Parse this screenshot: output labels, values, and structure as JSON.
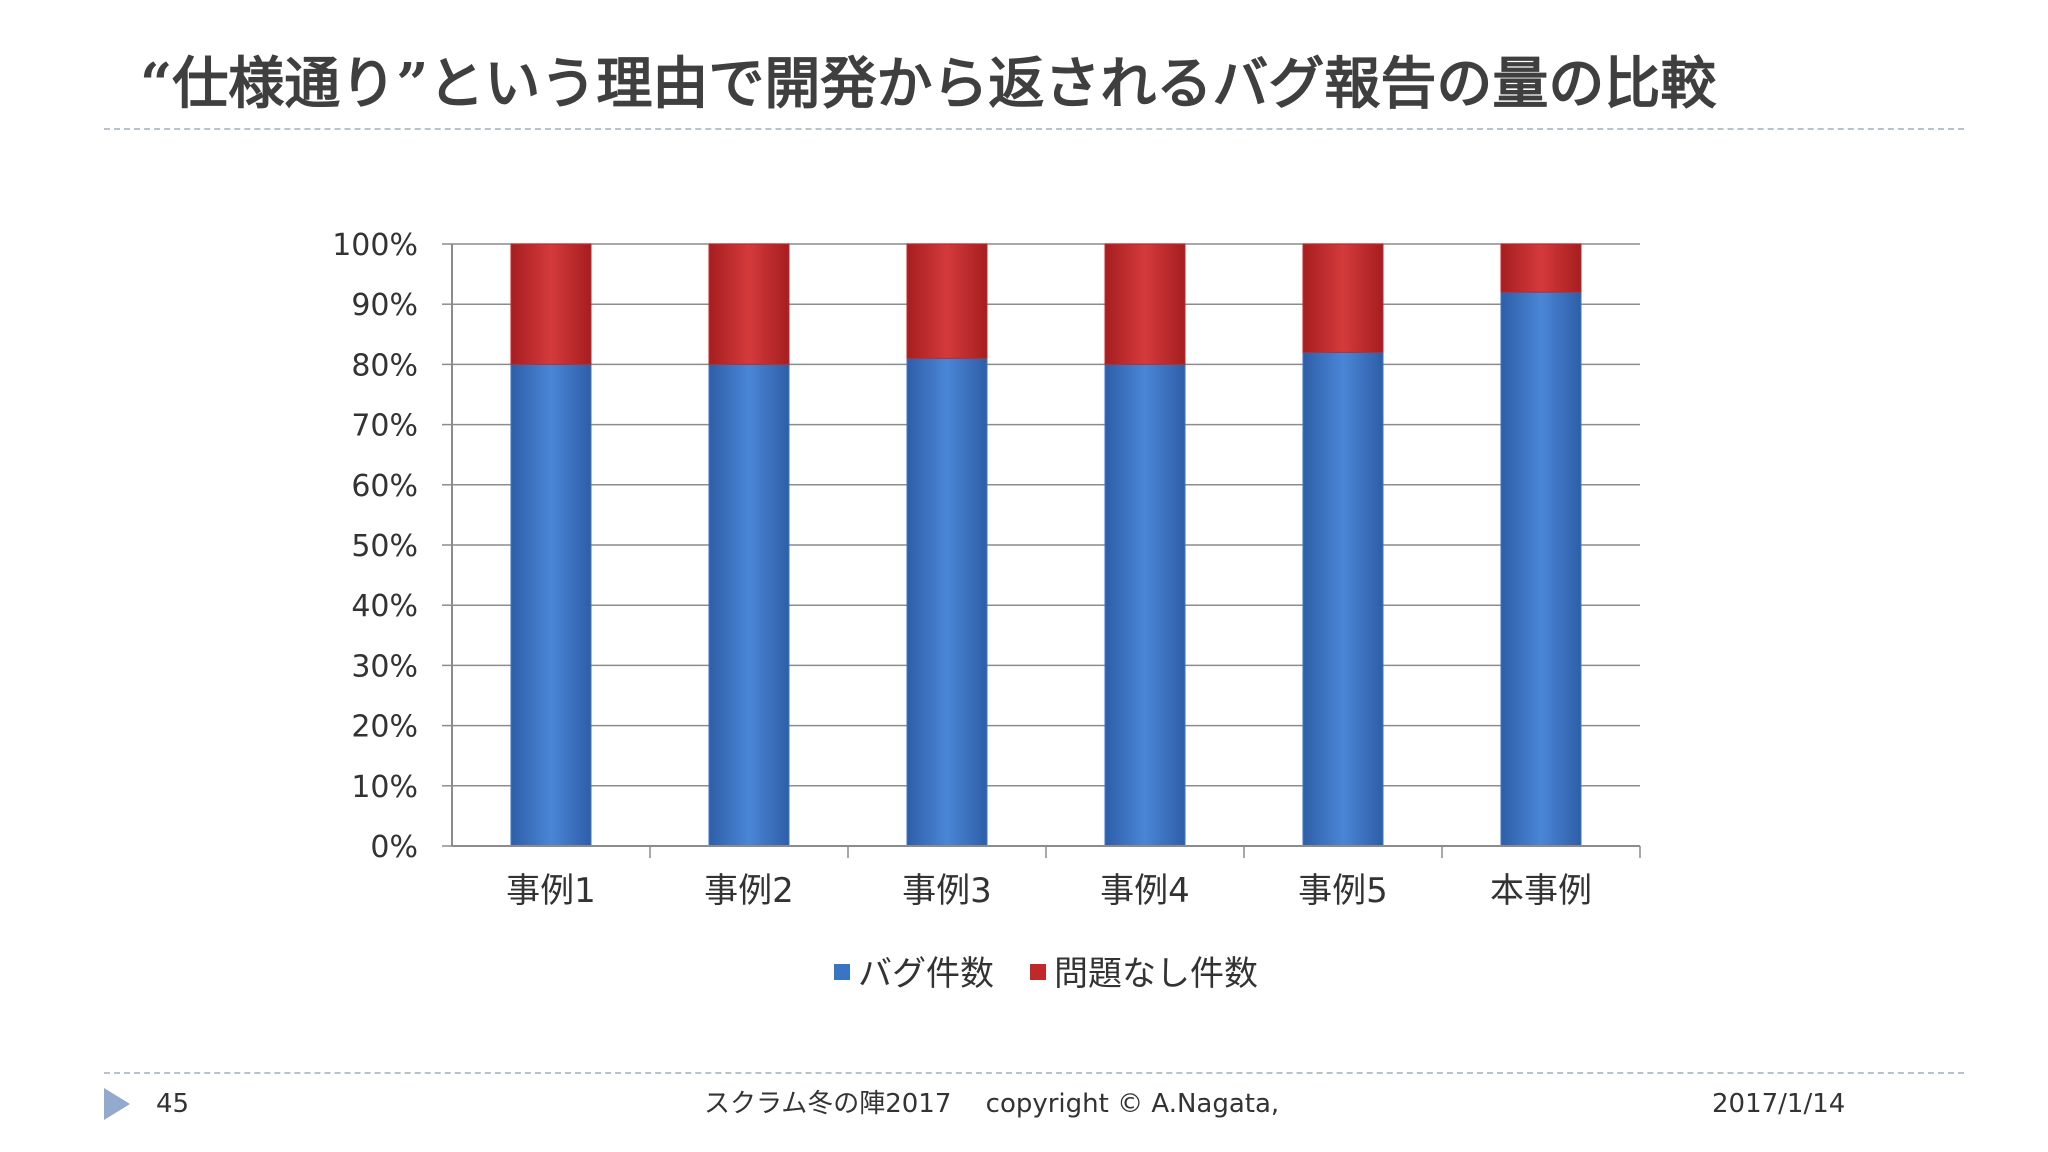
{
  "slide": {
    "title": "“仕様通り”という理由で開発から返されるバグ報告の量の比較",
    "page_number": "45",
    "footer_center": "スクラム冬の陣2017　  copyright © A.Nagata,",
    "footer_date": "2017/1/14"
  },
  "chart_data": {
    "type": "bar",
    "stacked": true,
    "normalized_percent": true,
    "categories": [
      "事例1",
      "事例2",
      "事例3",
      "事例4",
      "事例5",
      "本事例"
    ],
    "series": [
      {
        "name": "バグ件数",
        "values": [
          80,
          80,
          81,
          80,
          82,
          92
        ],
        "color": "#3a75c4"
      },
      {
        "name": "問題なし件数",
        "values": [
          20,
          20,
          19,
          20,
          18,
          8
        ],
        "color": "#c0282a"
      }
    ],
    "ylim": [
      0,
      100
    ],
    "yticks": [
      "0%",
      "10%",
      "20%",
      "30%",
      "40%",
      "50%",
      "60%",
      "70%",
      "80%",
      "90%",
      "100%"
    ],
    "grid": true,
    "legend_position": "bottom"
  }
}
